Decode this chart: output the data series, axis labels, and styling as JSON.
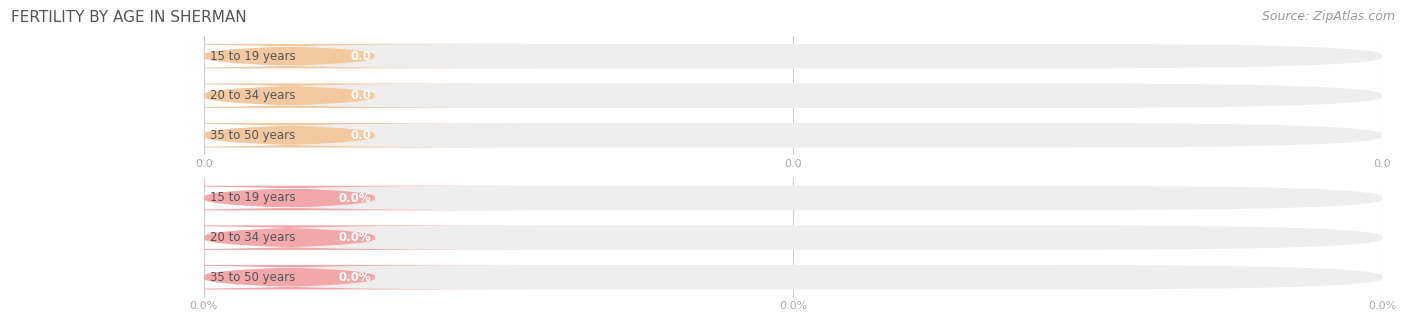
{
  "title": "FERTILITY BY AGE IN SHERMAN",
  "source_text": "Source: ZipAtlas.com",
  "categories": [
    "15 to 19 years",
    "20 to 34 years",
    "35 to 50 years"
  ],
  "values_count": [
    0.0,
    0.0,
    0.0
  ],
  "values_pct": [
    0.0,
    0.0,
    0.0
  ],
  "bar_color_count": "#f2c99e",
  "bar_color_pct": "#f2a8a8",
  "bar_bg_color": "#eeeeee",
  "tick_label_color": "#aaaaaa",
  "title_color": "#555555",
  "source_color": "#999999",
  "background_color": "#ffffff",
  "grid_color": "#cccccc",
  "bar_height": 0.62,
  "label_font_size": 8.5,
  "title_font_size": 11,
  "category_font_size": 8.5,
  "source_font_size": 9,
  "xtick_labels_count": [
    "0.0",
    "0.0",
    "0.0"
  ],
  "xtick_labels_pct": [
    "0.0%",
    "0.0%",
    "0.0%"
  ]
}
